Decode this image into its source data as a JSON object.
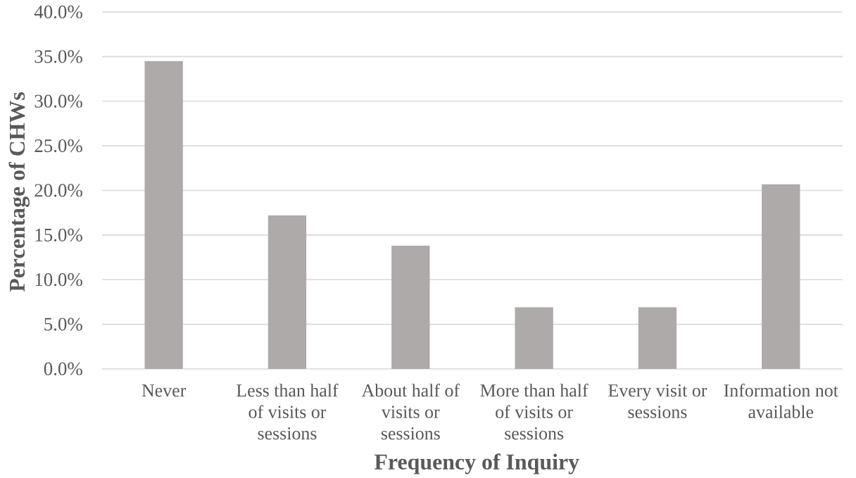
{
  "chart_data": {
    "type": "bar",
    "xlabel": "Frequency of Inquiry",
    "ylabel": "Percentage of CHWs",
    "categories": [
      "Never",
      "Less than half of visits or sessions",
      "About half of visits or sessions",
      "More than half of visits or sessions",
      "Every visit or sessions",
      "Information not available"
    ],
    "values": [
      34.5,
      17.2,
      13.8,
      6.9,
      6.9,
      20.7
    ],
    "color": "#aeaaaa",
    "ylim": [
      0,
      40
    ],
    "yticks": [
      {
        "value": 0,
        "label": "0.0%"
      },
      {
        "value": 5,
        "label": "5.0%"
      },
      {
        "value": 10,
        "label": "10.0%"
      },
      {
        "value": 15,
        "label": "15.0%"
      },
      {
        "value": 20,
        "label": "20.0%"
      },
      {
        "value": 25,
        "label": "25.0%"
      },
      {
        "value": 30,
        "label": "30.0%"
      },
      {
        "value": 35,
        "label": "35.0%"
      },
      {
        "value": 40,
        "label": "40.0%"
      }
    ],
    "grid": "y"
  }
}
